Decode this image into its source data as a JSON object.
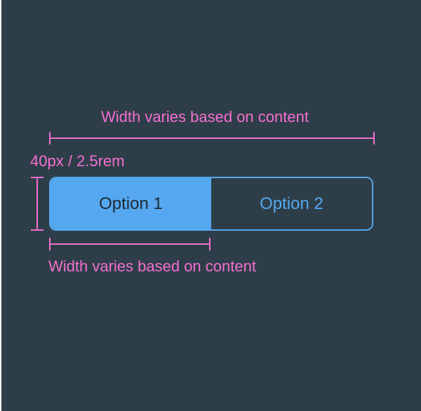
{
  "annotations": {
    "total_width": "Width varies based on content",
    "height": "40px / 2.5rem",
    "segment_width": "Width varies based on content"
  },
  "segmented_control": {
    "options": [
      {
        "label": "Option 1",
        "selected": true
      },
      {
        "label": "Option 2",
        "selected": false
      }
    ]
  },
  "colors": {
    "background": "#2e3e48",
    "annotation": "#f36fd0",
    "accent": "#55a8ef",
    "selected_text": "#1e2a33"
  }
}
